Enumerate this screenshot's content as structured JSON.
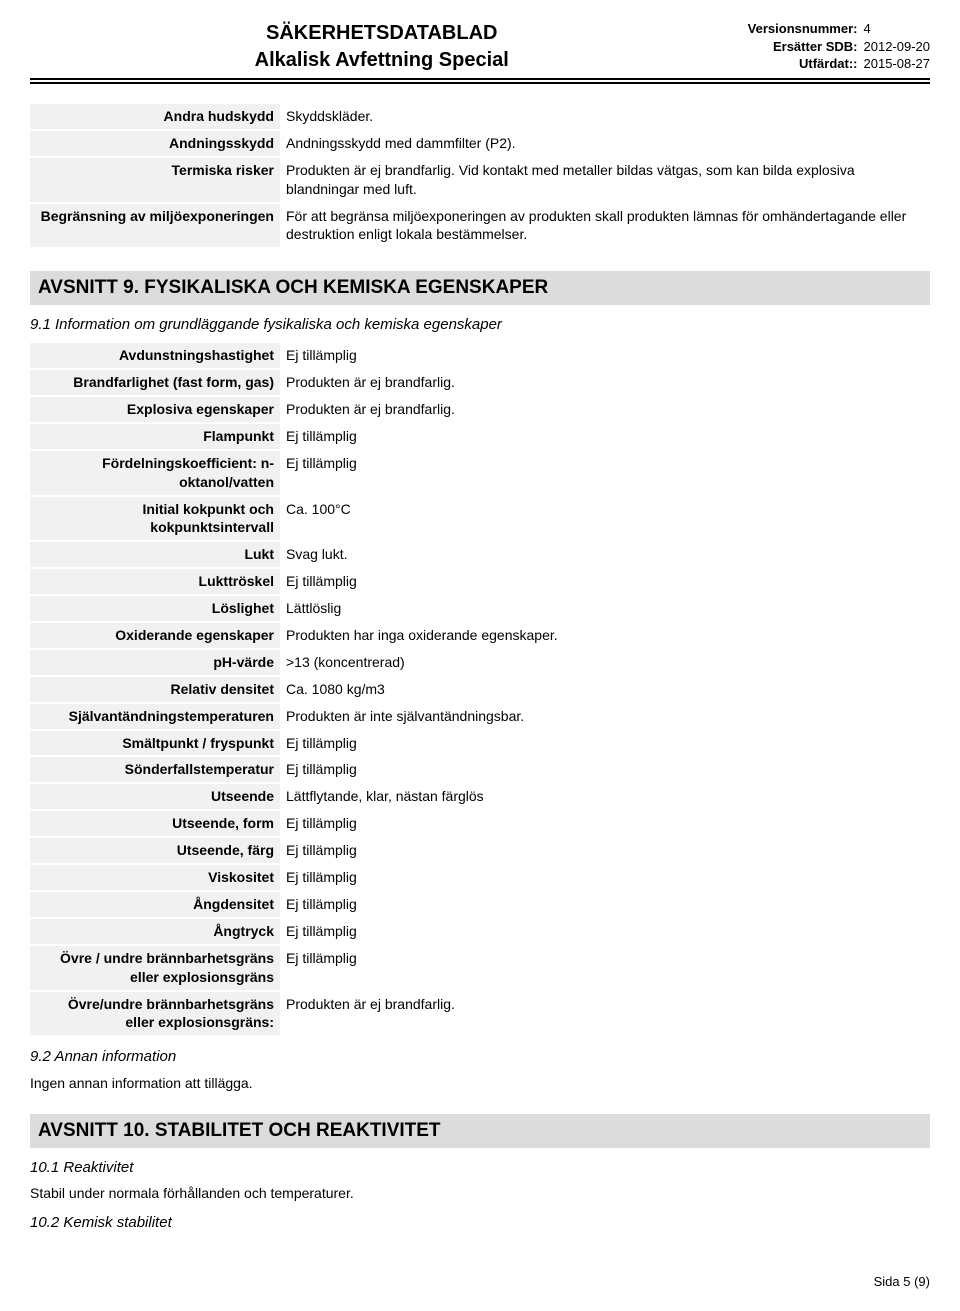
{
  "header": {
    "title1": "SÄKERHETSDATABLAD",
    "title2": "Alkalisk Avfettning Special",
    "meta": [
      {
        "label": "Versionsnummer:",
        "value": "4"
      },
      {
        "label": "Ersätter SDB:",
        "value": "2012-09-20"
      },
      {
        "label": "Utfärdat::",
        "value": "2015-08-27"
      }
    ]
  },
  "intro_rows": [
    {
      "label": "Andra hudskydd",
      "value": "Skyddskläder."
    },
    {
      "label": "Andningsskydd",
      "value": "Andningsskydd med dammfilter (P2)."
    },
    {
      "label": "Termiska risker",
      "value": "Produkten är ej brandfarlig. Vid kontakt med metaller bildas vätgas, som kan bilda explosiva blandningar med luft."
    },
    {
      "label": "Begränsning av miljöexponeringen",
      "value": "För att begränsa miljöexponeringen av produkten skall produkten lämnas för omhändertagande eller destruktion enligt lokala bestämmelser."
    }
  ],
  "section9": {
    "heading": "AVSNITT 9. FYSIKALISKA OCH KEMISKA EGENSKAPER",
    "sub1": "9.1 Information om grundläggande fysikaliska och kemiska egenskaper",
    "rows": [
      {
        "label": "Avdunstningshastighet",
        "value": "Ej tillämplig"
      },
      {
        "label": "Brandfarlighet (fast form, gas)",
        "value": "Produkten är ej brandfarlig."
      },
      {
        "label": "Explosiva egenskaper",
        "value": "Produkten är ej brandfarlig."
      },
      {
        "label": "Flampunkt",
        "value": "Ej tillämplig"
      },
      {
        "label": "Fördelningskoefficient: n-oktanol/vatten",
        "value": "Ej tillämplig"
      },
      {
        "label": "Initial kokpunkt och kokpunktsintervall",
        "value": "Ca. 100°C"
      },
      {
        "label": "Lukt",
        "value": "Svag lukt."
      },
      {
        "label": "Lukttröskel",
        "value": "Ej tillämplig"
      },
      {
        "label": "Löslighet",
        "value": "Lättlöslig"
      },
      {
        "label": "Oxiderande egenskaper",
        "value": "Produkten har inga oxiderande egenskaper."
      },
      {
        "label": "pH-värde",
        "value": ">13 (koncentrerad)"
      },
      {
        "label": "Relativ densitet",
        "value": "Ca. 1080 kg/m3"
      },
      {
        "label": "Självantändningstemperaturen",
        "value": "Produkten är inte självantändningsbar."
      },
      {
        "label": "Smältpunkt / fryspunkt",
        "value": "Ej tillämplig"
      },
      {
        "label": "Sönderfallstemperatur",
        "value": "Ej tillämplig"
      },
      {
        "label": "Utseende",
        "value": "Lättflytande, klar, nästan färglös"
      },
      {
        "label": "Utseende, form",
        "value": "Ej tillämplig"
      },
      {
        "label": "Utseende, färg",
        "value": "Ej tillämplig"
      },
      {
        "label": "Viskositet",
        "value": "Ej tillämplig"
      },
      {
        "label": "Ångdensitet",
        "value": "Ej tillämplig"
      },
      {
        "label": "Ångtryck",
        "value": "Ej tillämplig"
      },
      {
        "label": "Övre / undre brännbarhetsgräns eller explosionsgräns",
        "value": "Ej tillämplig"
      },
      {
        "label": "Övre/undre brännbarhetsgräns eller explosionsgräns:",
        "value": "Produkten är ej brandfarlig."
      }
    ],
    "sub2": "9.2 Annan information",
    "sub2_text": "Ingen annan information att tillägga."
  },
  "section10": {
    "heading": "AVSNITT 10. STABILITET OCH REAKTIVITET",
    "sub1": "10.1 Reaktivitet",
    "sub1_text": "Stabil under normala förhållanden och temperaturer.",
    "sub2": "10.2 Kemisk stabilitet"
  },
  "footer": "Sida 5 (9)",
  "colors": {
    "heading_bg": "#dcdcdc",
    "label_bg": "#f1f1f1",
    "text": "#000000",
    "page_bg": "#ffffff"
  }
}
